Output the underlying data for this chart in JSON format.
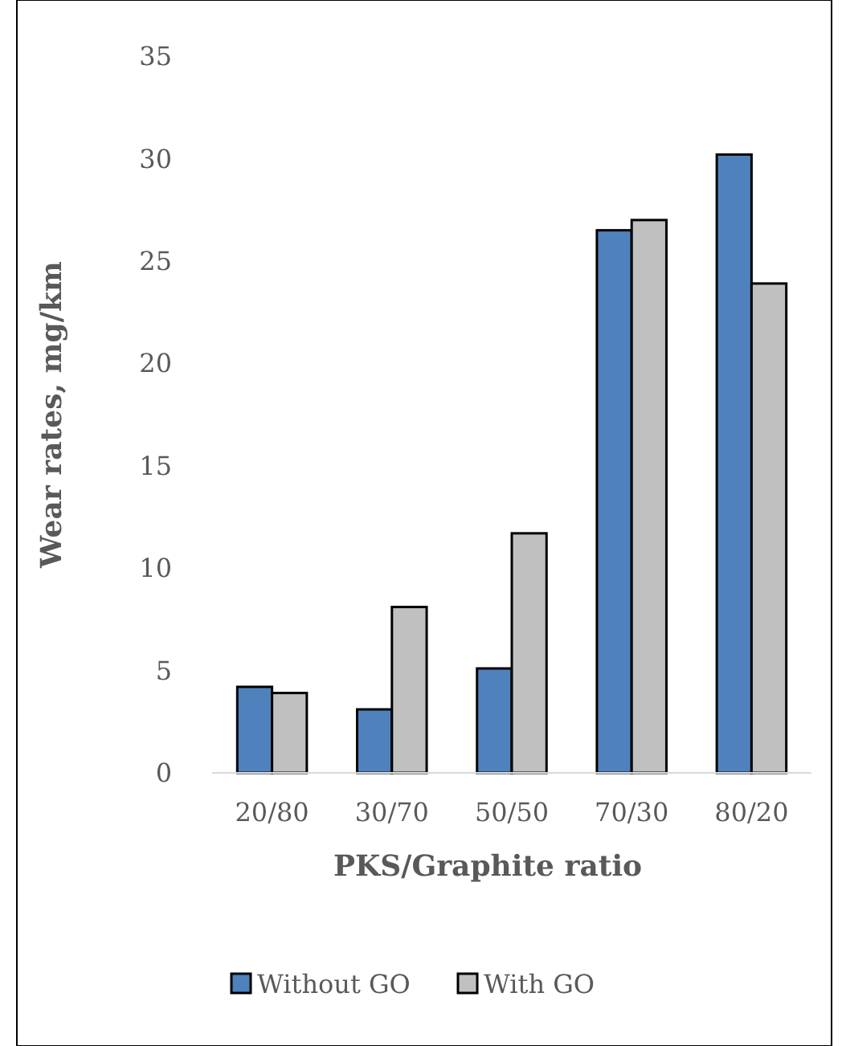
{
  "chart_data": {
    "type": "bar",
    "xlabel": "PKS/Graphite ratio",
    "ylabel": "Wear rates, mg/km",
    "categories": [
      "20/80",
      "30/70",
      "50/50",
      "70/30",
      "80/20"
    ],
    "series": [
      {
        "name": "Without GO",
        "color": "#4f81bd",
        "values": [
          4.2,
          3.1,
          5.1,
          26.5,
          30.2
        ]
      },
      {
        "name": "With GO",
        "color": "#c0c0c0",
        "values": [
          3.9,
          8.1,
          11.7,
          27.0,
          23.9
        ]
      }
    ],
    "ylim": [
      0,
      35
    ],
    "yticks": [
      0,
      5,
      10,
      15,
      20,
      25,
      30,
      35
    ],
    "grid": false,
    "legend": "bottom"
  }
}
